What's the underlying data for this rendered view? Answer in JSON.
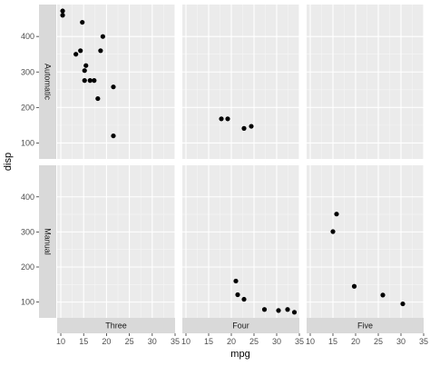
{
  "chart_data": {
    "type": "scatter",
    "xlabel": "mpg",
    "ylabel": "disp",
    "xlim": [
      9.2,
      35.0
    ],
    "ylim": [
      55,
      490
    ],
    "xticks": [
      10,
      15,
      20,
      25,
      30,
      35
    ],
    "yticks": [
      100,
      200,
      300,
      400
    ],
    "facet_cols": [
      "Three",
      "Four",
      "Five"
    ],
    "facet_rows": [
      "Automatic",
      "Manual"
    ],
    "grid": true,
    "legend": "none",
    "colors": {
      "panel_bg": "#ebebeb",
      "strip_bg": "#d9d9d9",
      "grid_major": "#ffffff",
      "point": "#000000"
    },
    "panels": [
      {
        "row": "Automatic",
        "col": "Three",
        "points": [
          {
            "x": 10.4,
            "y": 472
          },
          {
            "x": 10.4,
            "y": 460
          },
          {
            "x": 14.7,
            "y": 440
          },
          {
            "x": 19.2,
            "y": 400
          },
          {
            "x": 14.3,
            "y": 360
          },
          {
            "x": 18.7,
            "y": 360
          },
          {
            "x": 13.3,
            "y": 350
          },
          {
            "x": 15.5,
            "y": 318
          },
          {
            "x": 15.2,
            "y": 304
          },
          {
            "x": 16.4,
            "y": 276
          },
          {
            "x": 17.3,
            "y": 276
          },
          {
            "x": 15.2,
            "y": 276
          },
          {
            "x": 21.5,
            "y": 258
          },
          {
            "x": 18.1,
            "y": 225
          },
          {
            "x": 21.5,
            "y": 120
          }
        ]
      },
      {
        "row": "Automatic",
        "col": "Four",
        "points": [
          {
            "x": 17.8,
            "y": 168
          },
          {
            "x": 19.2,
            "y": 168
          },
          {
            "x": 22.8,
            "y": 141
          },
          {
            "x": 24.4,
            "y": 147
          }
        ]
      },
      {
        "row": "Automatic",
        "col": "Five",
        "points": []
      },
      {
        "row": "Manual",
        "col": "Three",
        "points": []
      },
      {
        "row": "Manual",
        "col": "Four",
        "points": [
          {
            "x": 21.0,
            "y": 160
          },
          {
            "x": 21.4,
            "y": 121
          },
          {
            "x": 22.8,
            "y": 108
          },
          {
            "x": 27.3,
            "y": 79
          },
          {
            "x": 30.4,
            "y": 76
          },
          {
            "x": 32.4,
            "y": 79
          },
          {
            "x": 33.9,
            "y": 71
          }
        ]
      },
      {
        "row": "Manual",
        "col": "Five",
        "points": [
          {
            "x": 15.0,
            "y": 301
          },
          {
            "x": 15.8,
            "y": 351
          },
          {
            "x": 19.7,
            "y": 145
          },
          {
            "x": 26.0,
            "y": 120
          },
          {
            "x": 30.4,
            "y": 95
          }
        ]
      }
    ]
  }
}
